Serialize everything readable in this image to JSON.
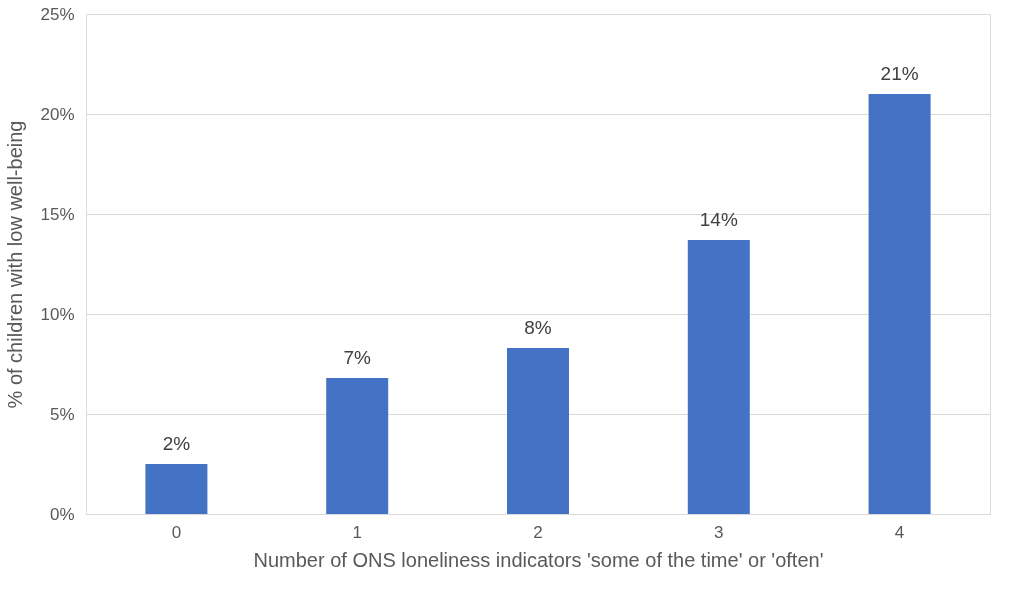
{
  "chart_data": {
    "type": "bar",
    "xlabel": "Number of ONS loneliness indicators 'some of the time' or 'often'",
    "ylabel": "% of children with low well-being",
    "categories": [
      "0",
      "1",
      "2",
      "3",
      "4"
    ],
    "values": [
      2.5,
      6.8,
      8.3,
      13.7,
      21.0
    ],
    "value_labels": [
      "2%",
      "7%",
      "8%",
      "14%",
      "21%"
    ],
    "color": "#4472c4",
    "ylim": [
      0,
      25
    ],
    "yticks": [
      {
        "value": 0,
        "label": "0%"
      },
      {
        "value": 5,
        "label": "5%"
      },
      {
        "value": 10,
        "label": "10%"
      },
      {
        "value": 15,
        "label": "15%"
      },
      {
        "value": 20,
        "label": "20%"
      },
      {
        "value": 25,
        "label": "25%"
      }
    ],
    "grid": "y"
  }
}
